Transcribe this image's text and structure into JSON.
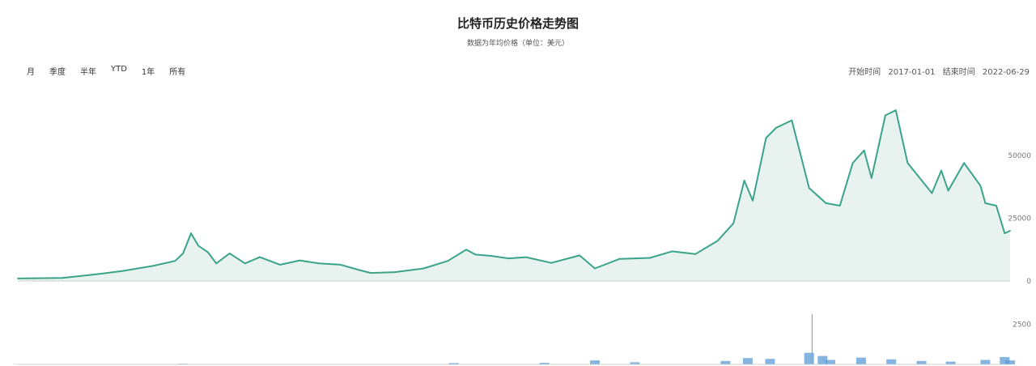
{
  "header": {
    "title": "比特币历史价格走势图",
    "subtitle": "数据为年均价格（单位：美元）"
  },
  "range_buttons": [
    {
      "label": "月",
      "name": "range-month-button"
    },
    {
      "label": "季度",
      "name": "range-quarter-button"
    },
    {
      "label": "半年",
      "name": "range-halfyear-button"
    },
    {
      "label": "YTD",
      "name": "range-ytd-button"
    },
    {
      "label": "1年",
      "name": "range-1y-button"
    },
    {
      "label": "所有",
      "name": "range-all-button"
    }
  ],
  "date_range": {
    "start_label": "开始时间",
    "start_value": "2017-01-01",
    "end_label": "结束时间",
    "end_value": "2022-06-29"
  },
  "colors": {
    "price_line": "#3aa38a",
    "price_fill": "#e8f3f0",
    "volume_fill": "#5b9bd5",
    "volume_spike": "#9aa5ad",
    "axis": "#cccccc"
  },
  "chart_data": {
    "type": "line",
    "title": "比特币历史价格走势图",
    "subtitle": "数据为年均价格（单位：美元）",
    "x_range": [
      "2017-01-01",
      "2022-06-29"
    ],
    "price": {
      "ylim": [
        0,
        70000
      ],
      "yticks": [
        {
          "value": 0,
          "label": "0"
        },
        {
          "value": 25000,
          "label": "25000"
        },
        {
          "value": 50000,
          "label": "50000"
        }
      ],
      "points": [
        [
          "2017-01-01",
          1000
        ],
        [
          "2017-04-01",
          1200
        ],
        [
          "2017-06-01",
          2500
        ],
        [
          "2017-08-01",
          4000
        ],
        [
          "2017-10-01",
          6000
        ],
        [
          "2017-11-15",
          8000
        ],
        [
          "2017-12-01",
          11000
        ],
        [
          "2017-12-17",
          19000
        ],
        [
          "2018-01-01",
          14000
        ],
        [
          "2018-01-20",
          11500
        ],
        [
          "2018-02-06",
          7000
        ],
        [
          "2018-03-05",
          11000
        ],
        [
          "2018-04-05",
          7000
        ],
        [
          "2018-05-05",
          9500
        ],
        [
          "2018-06-15",
          6500
        ],
        [
          "2018-07-25",
          8200
        ],
        [
          "2018-09-01",
          7000
        ],
        [
          "2018-10-15",
          6500
        ],
        [
          "2018-11-20",
          4500
        ],
        [
          "2018-12-15",
          3200
        ],
        [
          "2019-02-01",
          3500
        ],
        [
          "2019-04-01",
          5000
        ],
        [
          "2019-05-20",
          8000
        ],
        [
          "2019-06-26",
          12500
        ],
        [
          "2019-07-15",
          10500
        ],
        [
          "2019-08-15",
          10000
        ],
        [
          "2019-09-20",
          9000
        ],
        [
          "2019-10-25",
          9500
        ],
        [
          "2019-12-15",
          7200
        ],
        [
          "2020-02-10",
          10200
        ],
        [
          "2020-03-12",
          5000
        ],
        [
          "2020-05-01",
          8800
        ],
        [
          "2020-07-01",
          9200
        ],
        [
          "2020-08-15",
          11800
        ],
        [
          "2020-10-01",
          10700
        ],
        [
          "2020-11-15",
          16000
        ],
        [
          "2020-12-17",
          23000
        ],
        [
          "2021-01-08",
          40000
        ],
        [
          "2021-01-25",
          32000
        ],
        [
          "2021-02-21",
          57000
        ],
        [
          "2021-03-13",
          61000
        ],
        [
          "2021-04-14",
          64000
        ],
        [
          "2021-05-19",
          37000
        ],
        [
          "2021-06-22",
          31000
        ],
        [
          "2021-07-20",
          30000
        ],
        [
          "2021-08-15",
          47000
        ],
        [
          "2021-09-07",
          52000
        ],
        [
          "2021-09-22",
          41000
        ],
        [
          "2021-10-20",
          66000
        ],
        [
          "2021-11-10",
          68000
        ],
        [
          "2021-12-04",
          47000
        ],
        [
          "2022-01-22",
          35000
        ],
        [
          "2022-02-10",
          44000
        ],
        [
          "2022-02-24",
          36000
        ],
        [
          "2022-03-28",
          47000
        ],
        [
          "2022-04-30",
          38000
        ],
        [
          "2022-05-10",
          31000
        ],
        [
          "2022-06-01",
          30000
        ],
        [
          "2022-06-18",
          19000
        ],
        [
          "2022-06-29",
          20000
        ]
      ]
    },
    "volume": {
      "ylim": [
        0,
        5000
      ],
      "yticks": [
        {
          "value": 2500,
          "label": "2500"
        }
      ],
      "points": [
        [
          "2017-01-01",
          20
        ],
        [
          "2017-06-01",
          40
        ],
        [
          "2017-12-01",
          60
        ],
        [
          "2018-06-01",
          40
        ],
        [
          "2019-01-01",
          30
        ],
        [
          "2019-06-01",
          120
        ],
        [
          "2019-12-01",
          150
        ],
        [
          "2020-03-12",
          380
        ],
        [
          "2020-06-01",
          200
        ],
        [
          "2020-12-01",
          320
        ],
        [
          "2021-01-15",
          600
        ],
        [
          "2021-03-01",
          520
        ],
        [
          "2021-05-19",
          1100
        ],
        [
          "2021-05-25",
          4800
        ],
        [
          "2021-06-15",
          800
        ],
        [
          "2021-07-01",
          420
        ],
        [
          "2021-09-01",
          650
        ],
        [
          "2021-11-01",
          480
        ],
        [
          "2022-01-01",
          320
        ],
        [
          "2022-03-01",
          260
        ],
        [
          "2022-05-10",
          420
        ],
        [
          "2022-06-18",
          700
        ],
        [
          "2022-06-29",
          380
        ]
      ]
    }
  }
}
